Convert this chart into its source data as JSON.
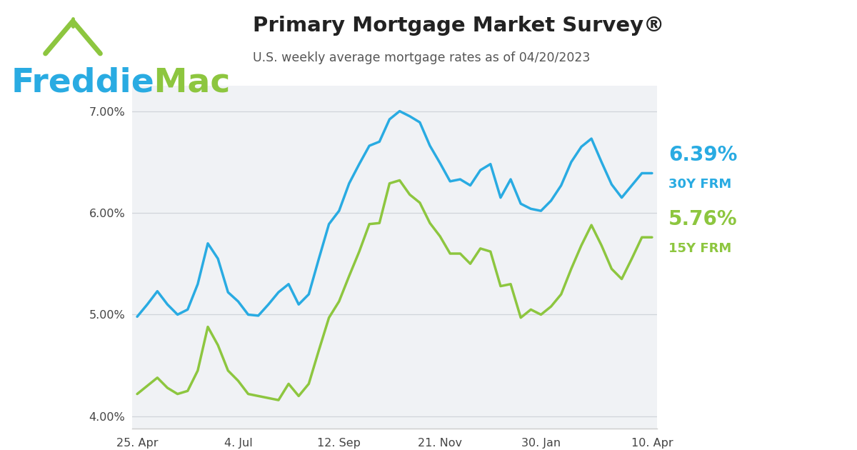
{
  "title": "Primary Mortgage Market Survey®",
  "subtitle": "U.S. weekly average mortgage rates as of 04/20/2023",
  "line30_color": "#29abe2",
  "line15_color": "#8dc63f",
  "freddie_blue": "#29abe2",
  "freddie_green": "#8dc63f",
  "rate_30y": "6.39%",
  "rate_15y": "5.76%",
  "label_30y": "30Y FRM",
  "label_15y": "15Y FRM",
  "ylim": [
    3.88,
    7.25
  ],
  "yticks": [
    4.0,
    5.0,
    6.0,
    7.0
  ],
  "ytick_labels": [
    "4.00%",
    "5.00%",
    "6.00%",
    "7.00%"
  ],
  "xtick_labels": [
    "25. Apr",
    "4. Jul",
    "12. Sep",
    "21. Nov",
    "30. Jan",
    "10. Apr"
  ],
  "xtick_positions": [
    0,
    10,
    20,
    30,
    40,
    51
  ],
  "y30": [
    4.98,
    5.1,
    5.23,
    5.1,
    5.0,
    5.05,
    5.3,
    5.7,
    5.55,
    5.22,
    5.13,
    5.0,
    4.99,
    5.1,
    5.22,
    5.3,
    5.1,
    5.2,
    5.55,
    5.89,
    6.02,
    6.29,
    6.48,
    6.66,
    6.7,
    6.92,
    7.0,
    6.95,
    6.89,
    6.66,
    6.49,
    6.31,
    6.33,
    6.27,
    6.42,
    6.48,
    6.15,
    6.33,
    6.09,
    6.04,
    6.02,
    6.12,
    6.27,
    6.5,
    6.65,
    6.73,
    6.5,
    6.28,
    6.15,
    6.27,
    6.39,
    6.39
  ],
  "y15": [
    4.22,
    4.3,
    4.38,
    4.28,
    4.22,
    4.25,
    4.45,
    4.88,
    4.7,
    4.45,
    4.35,
    4.22,
    4.2,
    4.18,
    4.16,
    4.32,
    4.2,
    4.32,
    4.65,
    4.97,
    5.13,
    5.38,
    5.62,
    5.89,
    5.9,
    6.29,
    6.32,
    6.18,
    6.1,
    5.9,
    5.77,
    5.6,
    5.6,
    5.5,
    5.65,
    5.62,
    5.28,
    5.3,
    4.97,
    5.05,
    5.0,
    5.08,
    5.2,
    5.45,
    5.68,
    5.88,
    5.68,
    5.45,
    5.35,
    5.55,
    5.76,
    5.76
  ],
  "chart_bg": "#f0f2f5",
  "grid_color": "#d0d4da",
  "spine_color": "#cccccc"
}
